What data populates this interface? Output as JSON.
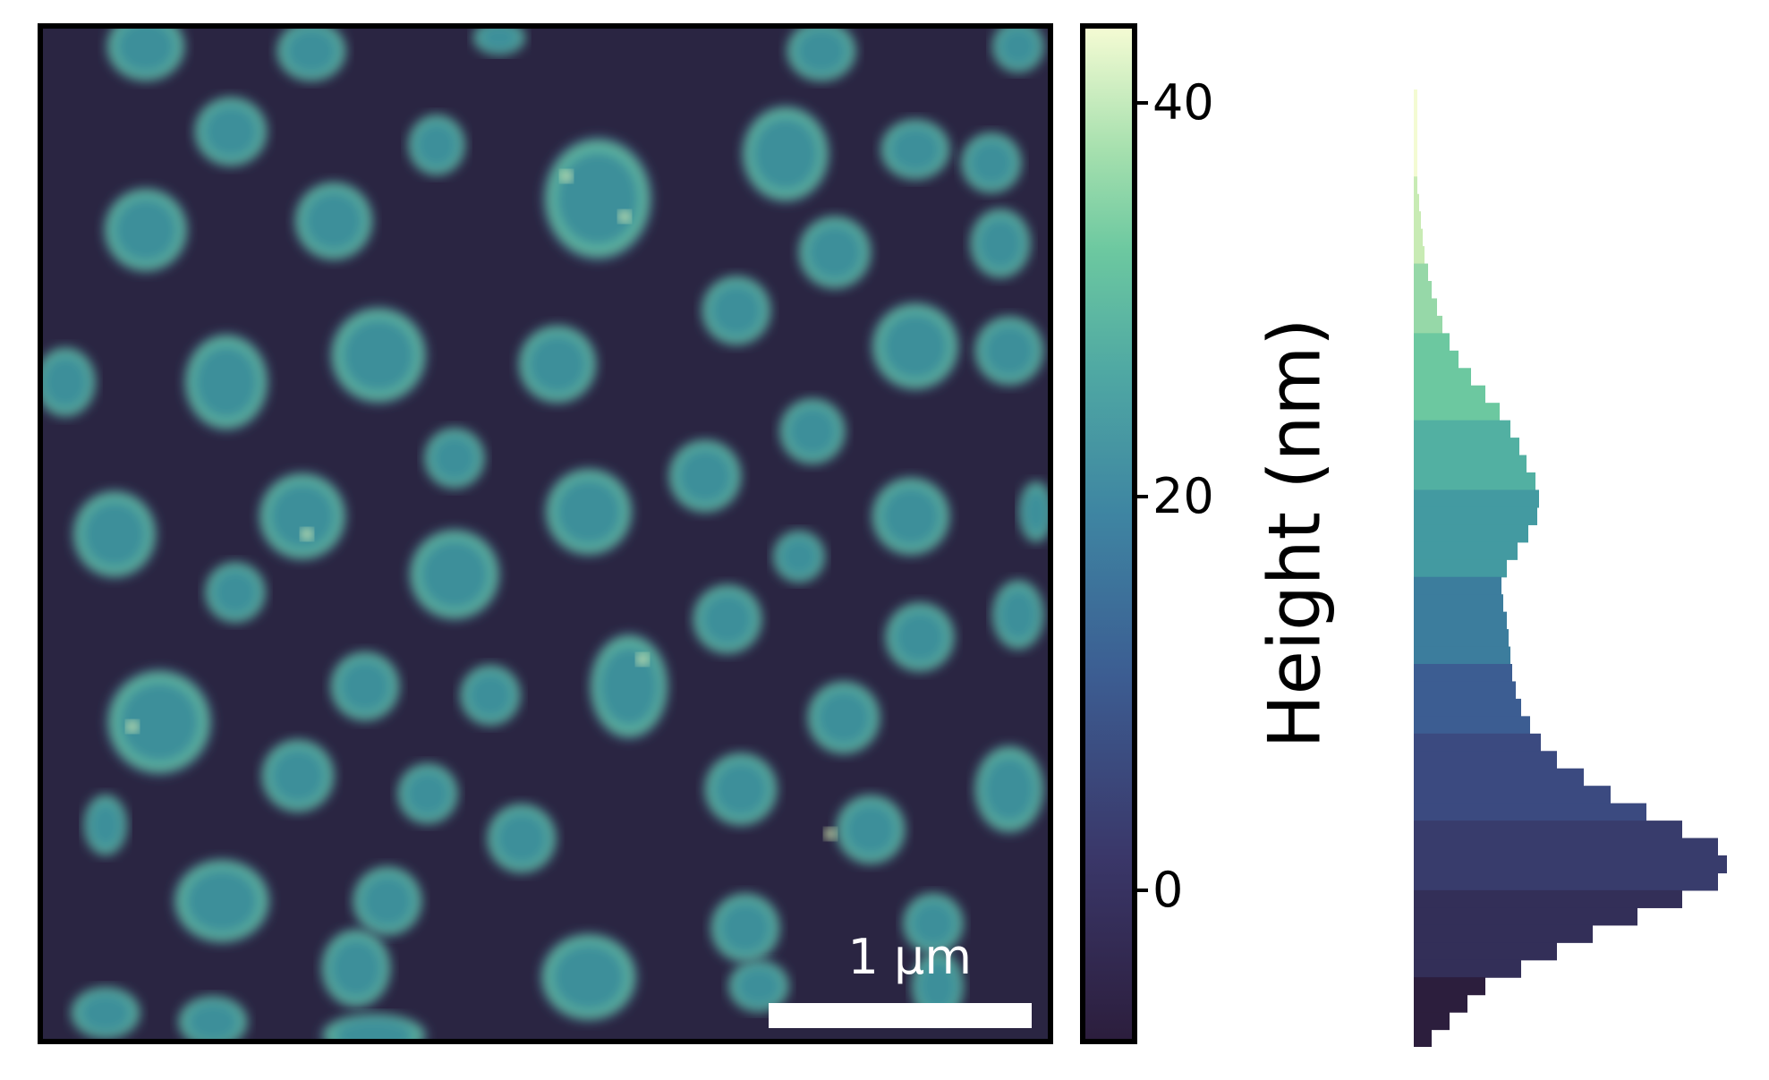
{
  "figure": {
    "scalebar_label": "1 µm",
    "colorbar": {
      "label": "Height (nm)",
      "ticks": [
        {
          "value": 40,
          "label": "40"
        },
        {
          "value": 20,
          "label": "20"
        },
        {
          "value": 0,
          "label": "0"
        }
      ],
      "range": [
        -8,
        44
      ]
    },
    "colors": {
      "background_dark": "#2a2542",
      "particle": "#3e8f9a",
      "particle_rim": "#6ac9a3",
      "highlight": "#d8f0b5"
    },
    "histogram": {
      "orientation": "horizontal",
      "description": "bimodal height distribution",
      "peaks_nm": [
        -1.5,
        19
      ]
    }
  }
}
